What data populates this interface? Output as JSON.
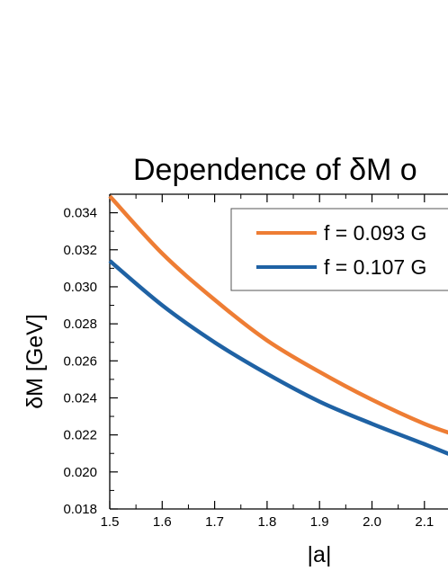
{
  "chart_data": {
    "type": "line",
    "title": "Dependence of δM o",
    "xlabel": "|a|",
    "ylabel": "δM [GeV]",
    "xlim": [
      1.5,
      2.2
    ],
    "ylim": [
      0.018,
      0.035
    ],
    "x_ticks": [
      "1.5",
      "1.6",
      "1.7",
      "1.8",
      "1.9",
      "2.0",
      "2.1"
    ],
    "y_ticks": [
      "0.018",
      "0.020",
      "0.022",
      "0.024",
      "0.026",
      "0.028",
      "0.030",
      "0.032",
      "0.034"
    ],
    "grid": false,
    "legend_position": "top-right",
    "series": [
      {
        "name": "f = 0.093 G",
        "color": "#ee7d34",
        "x": [
          1.5,
          1.6,
          1.7,
          1.8,
          1.9,
          2.0,
          2.1,
          2.17
        ],
        "y": [
          0.0349,
          0.0318,
          0.0293,
          0.0271,
          0.0254,
          0.0239,
          0.0226,
          0.0219
        ]
      },
      {
        "name": "f = 0.107 G",
        "color": "#1f62a4",
        "x": [
          1.5,
          1.6,
          1.7,
          1.8,
          1.9,
          2.0,
          2.1,
          2.17
        ],
        "y": [
          0.0314,
          0.029,
          0.027,
          0.0253,
          0.0238,
          0.0226,
          0.0215,
          0.0207
        ]
      }
    ]
  }
}
